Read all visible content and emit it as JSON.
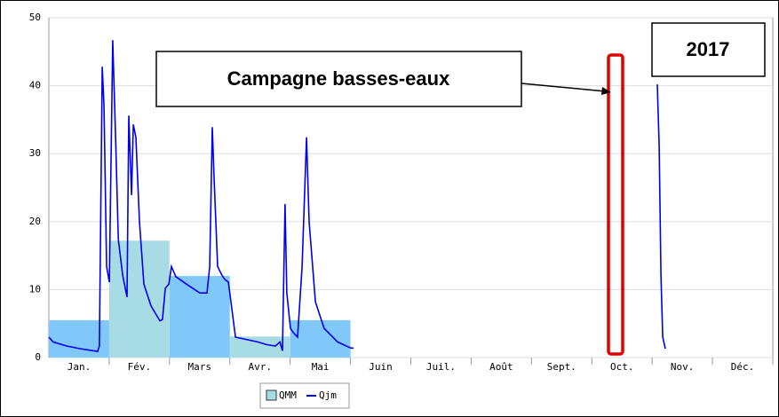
{
  "chart_data": {
    "type": "combo",
    "categories": [
      "Jan.",
      "Fév.",
      "Mars",
      "Avr.",
      "Mai",
      "Juin",
      "Juil.",
      "Août",
      "Sept.",
      "Oct.",
      "Nov.",
      "Déc."
    ],
    "ylim": [
      0,
      50
    ],
    "yticks": [
      0,
      10,
      20,
      30,
      40,
      50
    ],
    "xlim": [
      0,
      365
    ],
    "grid": true,
    "series": [
      {
        "name": "QMM",
        "type": "bar",
        "color": "#a8dce4",
        "colors": [
          "#80c8fa",
          "#a8dce4",
          "#80c8fa",
          "#a8dce4",
          "#80c8fa",
          "#a8dce4",
          "#80c8fa",
          "#a8dce4",
          "#80c8fa",
          "#a8dce4",
          "#80c8fa",
          "#a8dce4"
        ],
        "values": [
          5.5,
          17.2,
          12,
          3.1,
          5.5,
          null,
          null,
          null,
          null,
          null,
          null,
          null
        ]
      },
      {
        "name": "Qjm",
        "type": "line",
        "color": "#0000ee",
        "x": [
          0,
          2.2,
          9,
          15.7,
          24.6,
          25.5,
          26.9,
          27.8,
          29.1,
          30.5,
          32.2,
          33.6,
          35,
          37.2,
          39.4,
          40.3,
          41.7,
          42.6,
          43.9,
          45.7,
          47.9,
          51.5,
          56,
          57.3,
          58.7,
          60.5,
          61.8,
          64,
          69.4,
          76.1,
          79.7,
          81.1,
          82.4,
          83.3,
          85.1,
          87.3,
          88.7,
          90.5,
          91.8,
          94.1,
          105.3,
          109.7,
          114.2,
          116.5,
          117.8,
          119.1,
          120,
          121.8,
          123.2,
          125.4,
          127.7,
          129.9,
          131.2,
          134.4,
          138.8,
          145.6,
          152.3,
          153.6,
          230,
          306.8,
          307.7,
          308.6,
          309.5,
          310.8
        ],
        "values": [
          3.0,
          2.3,
          1.7,
          1.3,
          0.9,
          1.7,
          42.8,
          36.9,
          13.4,
          11.1,
          46.7,
          33,
          17.4,
          12.1,
          8.9,
          35.6,
          23.9,
          34.3,
          32.4,
          20,
          10.8,
          7.6,
          5.4,
          5.6,
          10.2,
          10.8,
          13.4,
          11.9,
          10.8,
          9.5,
          9.5,
          13.4,
          33.9,
          26.5,
          13.4,
          12.1,
          11.5,
          11.1,
          8.2,
          3.0,
          2.3,
          1.9,
          1.7,
          2.3,
          1.0,
          22.6,
          9.5,
          4.3,
          3.7,
          3.0,
          13.4,
          32.4,
          20,
          8.2,
          4.3,
          2.3,
          1.4,
          1.4,
          null,
          40.2,
          31.1,
          12.1,
          3.0,
          1.3
        ]
      }
    ],
    "annotations": [
      "Campagne basses-eaux",
      "2017"
    ]
  }
}
